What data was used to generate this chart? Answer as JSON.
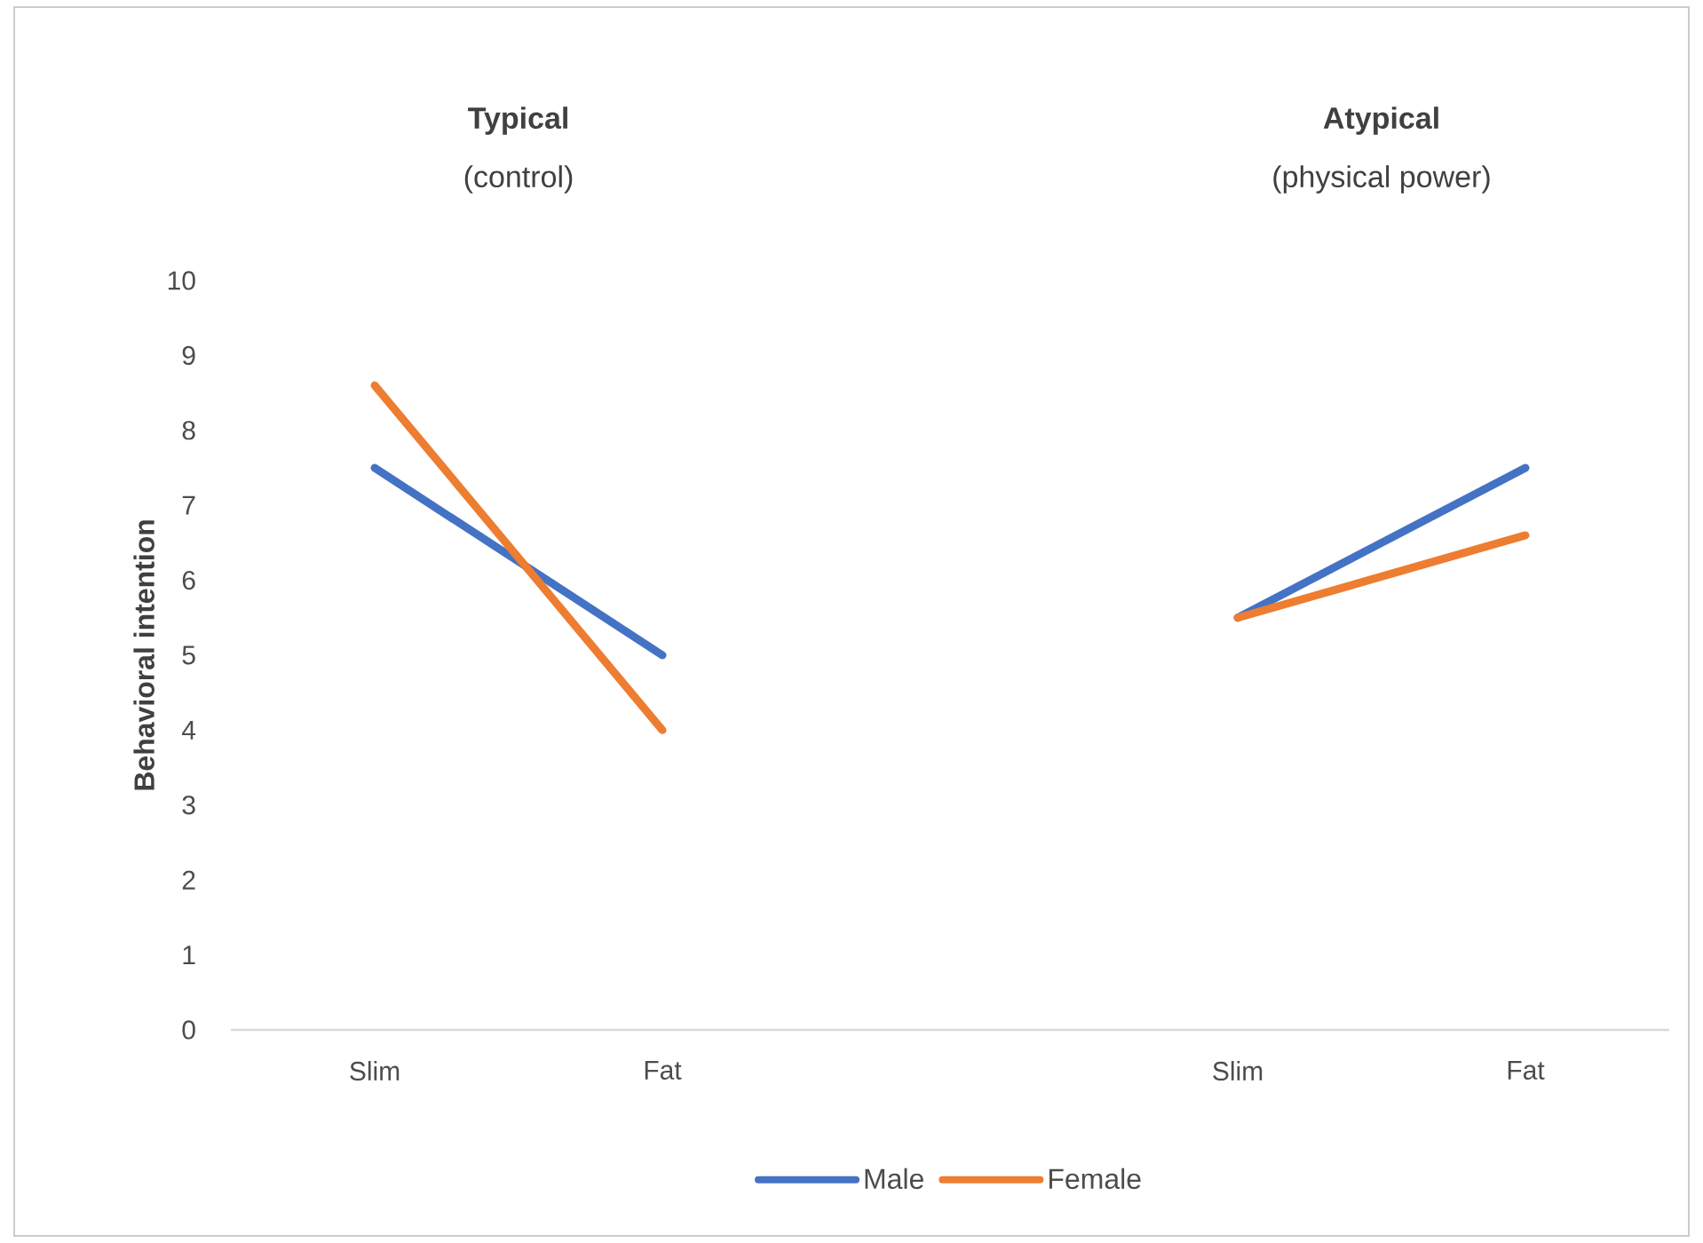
{
  "chart_data": {
    "type": "line",
    "annotations": [
      "Typical",
      "(control)",
      "Atypical",
      "(physical power)"
    ],
    "ylabel": "Behavioral intention",
    "categories": [
      "Slim",
      "Fat",
      null,
      "Slim",
      "Fat"
    ],
    "series": [
      {
        "name": "Male",
        "color": "#4472c4",
        "values": [
          7.5,
          5.0,
          null,
          5.5,
          7.5
        ]
      },
      {
        "name": "Female",
        "color": "#ed7d31",
        "values": [
          8.6,
          4.0,
          null,
          5.5,
          6.6
        ]
      }
    ],
    "ylim": [
      0,
      10
    ],
    "yticks": [
      0,
      1,
      2,
      3,
      4,
      5,
      6,
      7,
      8,
      9,
      10
    ],
    "grid": false,
    "legend": "bottom"
  }
}
